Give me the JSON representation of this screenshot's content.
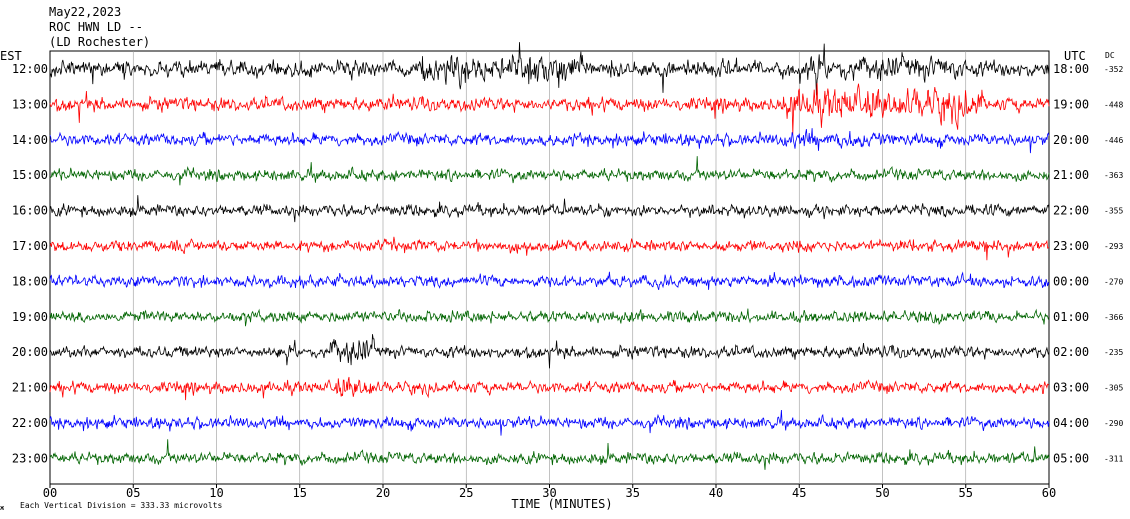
{
  "header": {
    "date": "May22,2023",
    "station": "ROC HWN LD --",
    "location": "(LD Rochester)"
  },
  "axis_labels": {
    "left_tz": "EST",
    "right_tz": "UTC",
    "dc_header": "DC",
    "x_title": "TIME (MINUTES)"
  },
  "footer": {
    "vertical_scale": "Each Vertical Division =  333.33 microvolts"
  },
  "chart_data": {
    "type": "line",
    "title": "",
    "xlabel": "TIME (MINUTES)",
    "xlim": [
      0,
      60
    ],
    "x_ticks": [
      "00",
      "05",
      "10",
      "15",
      "20",
      "25",
      "30",
      "35",
      "40",
      "45",
      "50",
      "55",
      "60"
    ],
    "grid": true,
    "trace_colors": [
      "#000000",
      "#ff0000",
      "#0000ff",
      "#006400"
    ],
    "rows": [
      {
        "est": "12:00",
        "utc": "18:00",
        "dc": "-352"
      },
      {
        "est": "13:00",
        "utc": "19:00",
        "dc": "-448"
      },
      {
        "est": "14:00",
        "utc": "20:00",
        "dc": "-446"
      },
      {
        "est": "15:00",
        "utc": "21:00",
        "dc": "-363"
      },
      {
        "est": "16:00",
        "utc": "22:00",
        "dc": "-355"
      },
      {
        "est": "17:00",
        "utc": "23:00",
        "dc": "-293"
      },
      {
        "est": "18:00",
        "utc": "00:00",
        "dc": "-270"
      },
      {
        "est": "19:00",
        "utc": "01:00",
        "dc": "-366"
      },
      {
        "est": "20:00",
        "utc": "02:00",
        "dc": "-235"
      },
      {
        "est": "21:00",
        "utc": "03:00",
        "dc": "-305"
      },
      {
        "est": "22:00",
        "utc": "04:00",
        "dc": "-290"
      },
      {
        "est": "23:00",
        "utc": "05:00",
        "dc": "-311"
      }
    ]
  }
}
